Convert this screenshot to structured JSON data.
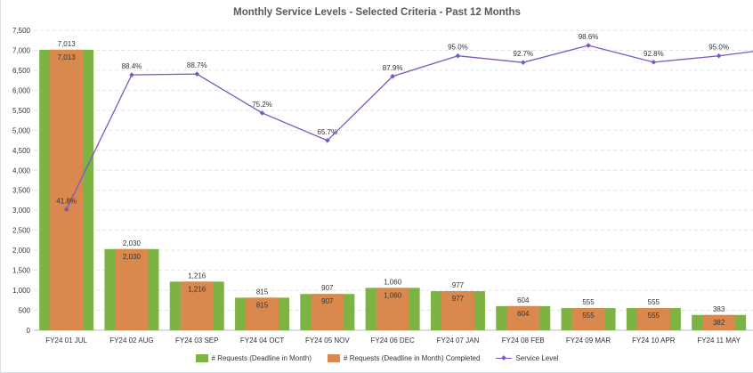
{
  "chart_data": {
    "type": "bar+line",
    "title": "Monthly Service Levels - Selected Criteria - Past 12 Months",
    "categories": [
      "FY24 01 JUL",
      "FY24 02 AUG",
      "FY24 03 SEP",
      "FY24 04 OCT",
      "FY24 05 NOV",
      "FY24 06 DEC",
      "FY24 07 JAN",
      "FY24 08 FEB",
      "FY24 09 MAR",
      "FY24 10 APR",
      "FY24 11 MAY"
    ],
    "y_ticks": [
      "0",
      "500",
      "1,000",
      "1,500",
      "2,000",
      "2,500",
      "3,000",
      "3,500",
      "4,000",
      "4,500",
      "5,000",
      "5,500",
      "6,000",
      "6,500",
      "7,000",
      "7,500"
    ],
    "ylim": [
      0,
      7500
    ],
    "grid": true,
    "legend_position": "bottom",
    "series": [
      {
        "name": "# Requests (Deadline in Month)",
        "kind": "bar",
        "color": "#7cb342",
        "values": [
          7013,
          2030,
          1216,
          815,
          907,
          1060,
          977,
          604,
          555,
          555,
          383
        ],
        "labels": [
          "7,013",
          "2,030",
          "1,216",
          "815",
          "907",
          "1,060",
          "977",
          "604",
          "555",
          "555",
          "383"
        ]
      },
      {
        "name": "# Requests (Deadline in Month) Completed",
        "kind": "bar",
        "color": "#d9884e",
        "values": [
          7013,
          2030,
          1216,
          815,
          907,
          1060,
          977,
          604,
          555,
          555,
          382
        ],
        "labels": [
          "7,013",
          "2,030",
          "1,216",
          "815",
          "907",
          "1,060",
          "977",
          "604",
          "555",
          "555",
          "382"
        ]
      },
      {
        "name": "Service Level",
        "kind": "line",
        "color": "#7e57c2",
        "values": [
          41.8,
          88.4,
          88.7,
          75.2,
          65.7,
          87.9,
          95.0,
          92.7,
          98.6,
          92.8,
          95.0
        ],
        "labels": [
          "41.8%",
          "88.4%",
          "88.7%",
          "75.2%",
          "65.7%",
          "87.9%",
          "95.0%",
          "92.7%",
          "98.6%",
          "92.8%",
          "95.0%"
        ]
      }
    ]
  }
}
